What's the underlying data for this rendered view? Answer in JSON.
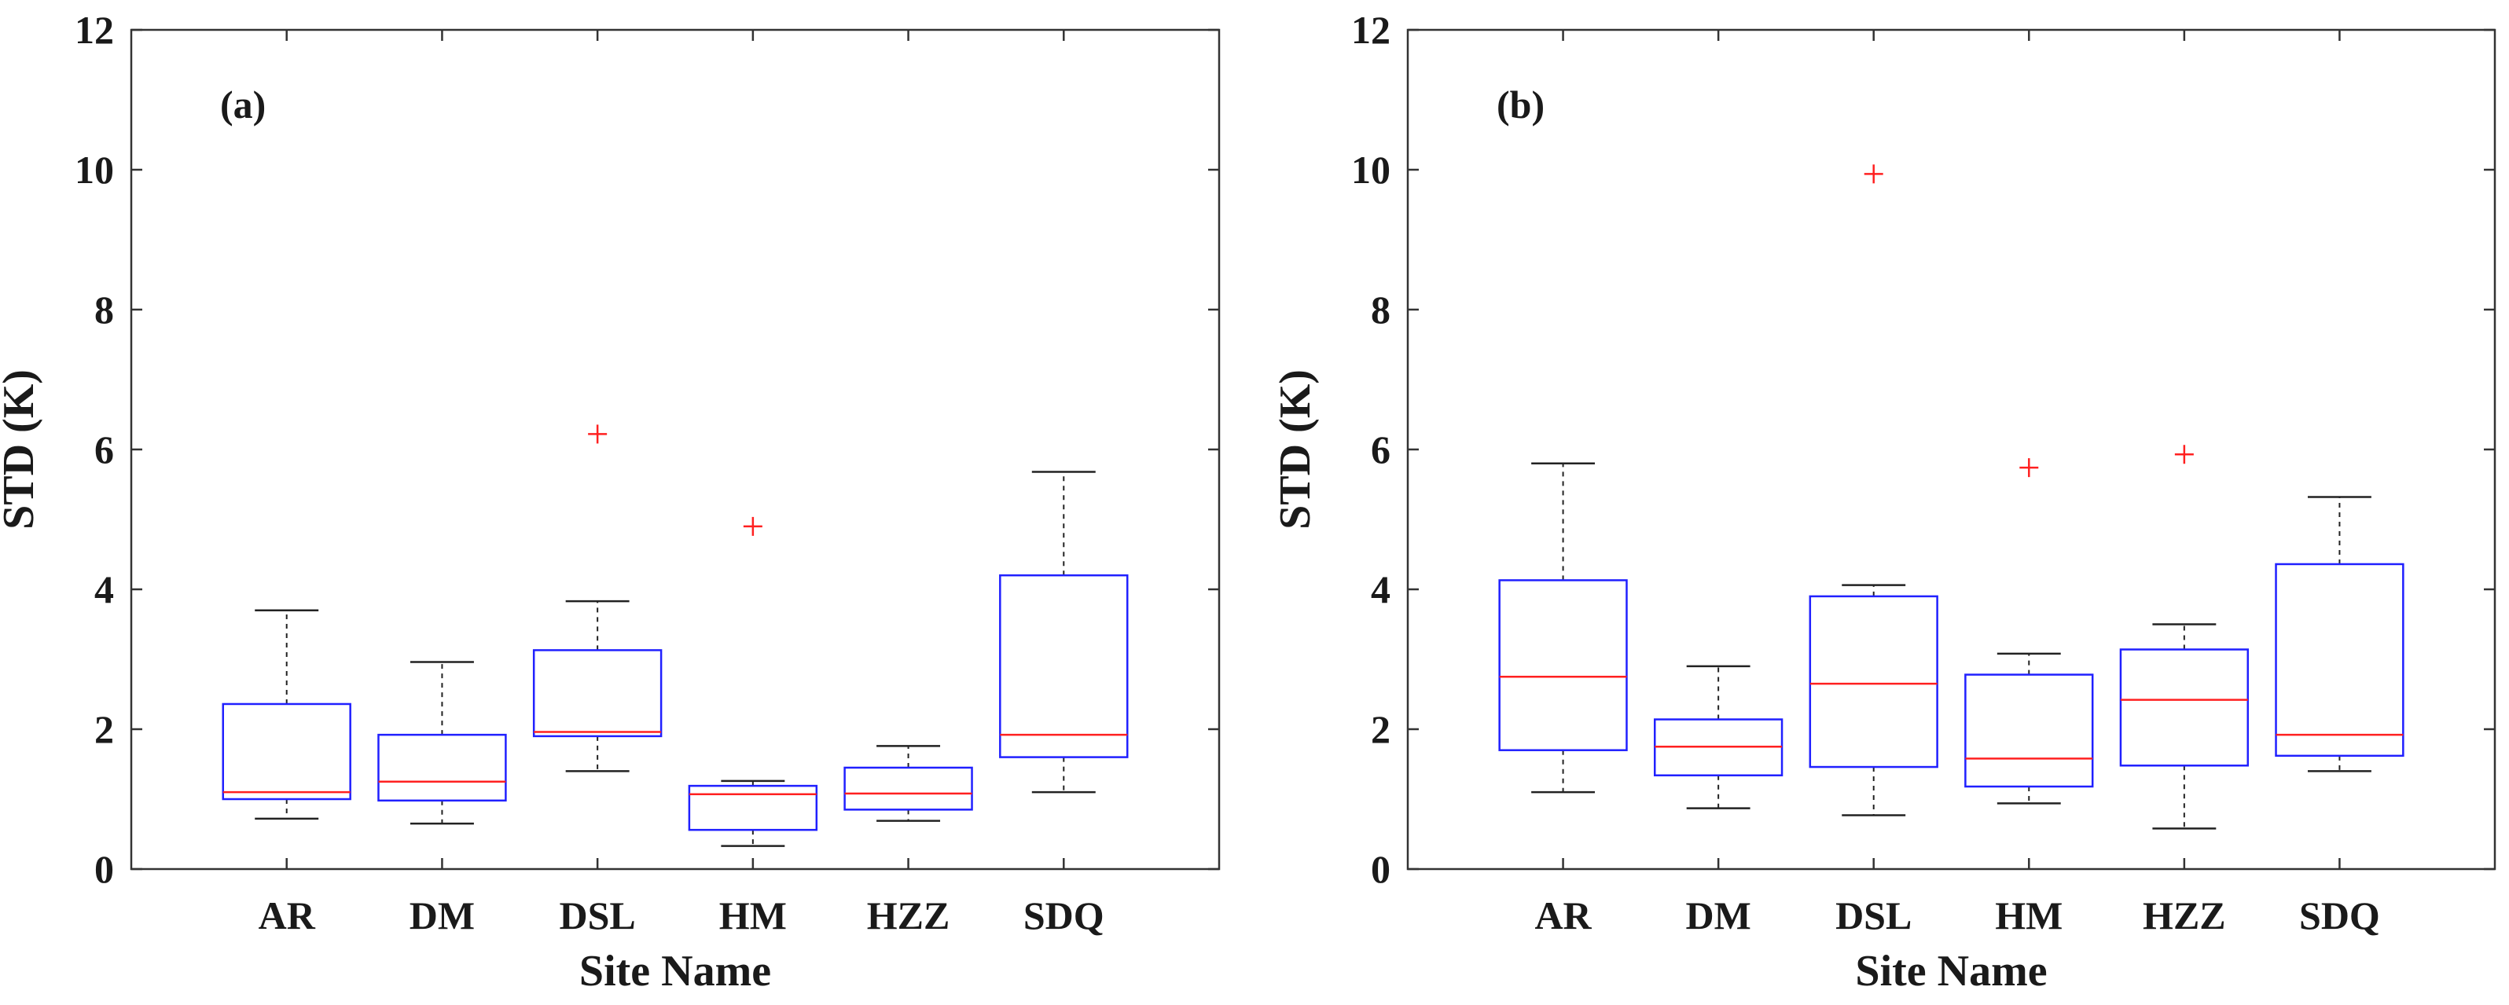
{
  "chart_data": [
    {
      "type": "boxplot",
      "panel_label": "(a)",
      "xlabel": "Site Name",
      "ylabel": "STD (K)",
      "ylim": [
        0,
        12
      ],
      "yticks": [
        "0",
        "2",
        "4",
        "6",
        "8",
        "10",
        "12"
      ],
      "categories": [
        "AR",
        "DM",
        "DSL",
        "HM",
        "HZZ",
        "SDQ"
      ],
      "boxes": [
        {
          "whisker_low": 0.72,
          "q1": 1.0,
          "median": 1.1,
          "q3": 2.36,
          "whisker_high": 3.7,
          "outliers": []
        },
        {
          "whisker_low": 0.65,
          "q1": 0.98,
          "median": 1.25,
          "q3": 1.92,
          "whisker_high": 2.96,
          "outliers": []
        },
        {
          "whisker_low": 1.4,
          "q1": 1.9,
          "median": 1.96,
          "q3": 3.13,
          "whisker_high": 3.83,
          "outliers": [
            6.22
          ]
        },
        {
          "whisker_low": 0.33,
          "q1": 0.56,
          "median": 1.07,
          "q3": 1.19,
          "whisker_high": 1.26,
          "outliers": [
            4.9
          ]
        },
        {
          "whisker_low": 0.69,
          "q1": 0.85,
          "median": 1.08,
          "q3": 1.45,
          "whisker_high": 1.76,
          "outliers": []
        },
        {
          "whisker_low": 1.1,
          "q1": 1.6,
          "median": 1.92,
          "q3": 4.2,
          "whisker_high": 5.68,
          "outliers": []
        }
      ]
    },
    {
      "type": "boxplot",
      "panel_label": "(b)",
      "xlabel": "Site Name",
      "ylabel": "STD (K)",
      "ylim": [
        0,
        12
      ],
      "yticks": [
        "0",
        "2",
        "4",
        "6",
        "8",
        "10",
        "12"
      ],
      "categories": [
        "AR",
        "DM",
        "DSL",
        "HM",
        "HZZ",
        "SDQ"
      ],
      "boxes": [
        {
          "whisker_low": 1.1,
          "q1": 1.7,
          "median": 2.75,
          "q3": 4.13,
          "whisker_high": 5.8,
          "outliers": []
        },
        {
          "whisker_low": 0.87,
          "q1": 1.34,
          "median": 1.75,
          "q3": 2.14,
          "whisker_high": 2.9,
          "outliers": []
        },
        {
          "whisker_low": 0.77,
          "q1": 1.46,
          "median": 2.65,
          "q3": 3.9,
          "whisker_high": 4.06,
          "outliers": [
            9.94
          ]
        },
        {
          "whisker_low": 0.94,
          "q1": 1.18,
          "median": 1.58,
          "q3": 2.78,
          "whisker_high": 3.08,
          "outliers": [
            5.74
          ]
        },
        {
          "whisker_low": 0.58,
          "q1": 1.48,
          "median": 2.42,
          "q3": 3.14,
          "whisker_high": 3.5,
          "outliers": [
            5.93
          ]
        },
        {
          "whisker_low": 1.4,
          "q1": 1.62,
          "median": 1.92,
          "q3": 4.36,
          "whisker_high": 5.32,
          "outliers": []
        }
      ]
    }
  ],
  "colors": {
    "box": "#2020ff",
    "median": "#ff2020",
    "whisker": "#222222",
    "outlier": "#ff2020",
    "axis": "#333333"
  }
}
